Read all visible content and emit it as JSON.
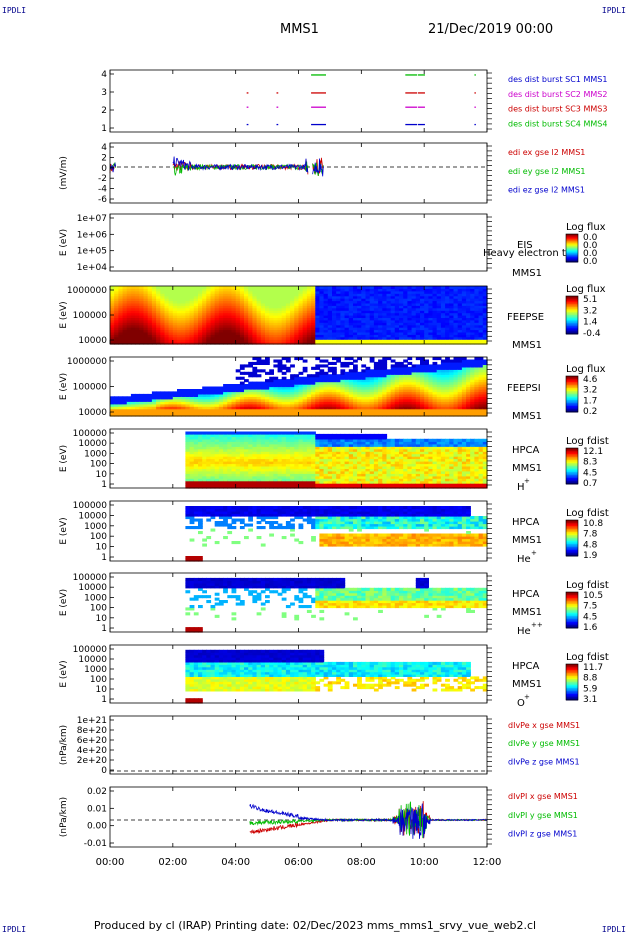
{
  "corner_tl": "IPDLI",
  "corner_tr": "IPDLI",
  "corner_bl": "IPDLI",
  "corner_br": "IPDLI",
  "title": "MMS1",
  "date": "21/Dec/2019 00:00",
  "footer": "Produced by cl (IRAP)   Printing date: 02/Dec/2023   mms_mms1_srvy_vue_web2.cl",
  "chart_data": {
    "type": "stacked-timeseries",
    "x_ticks": [
      "00:00",
      "02:00",
      "04:00",
      "06:00",
      "08:00",
      "10:00",
      "12:00"
    ],
    "panels": [
      {
        "id": "burst",
        "type": "scatter",
        "ylabel": "",
        "yticks": [
          "4",
          "3",
          "2",
          "1"
        ],
        "legend": [
          {
            "text": "des dist burst SC1 MMS1",
            "color": "#0000cc"
          },
          {
            "text": "des dist burst SC2 MMS2",
            "color": "#cc00cc"
          },
          {
            "text": "des dist burst SC3 MMS3",
            "color": "#cc0000"
          },
          {
            "text": "des dist burst SC4 MMS4",
            "color": "#00bb00"
          }
        ]
      },
      {
        "id": "efield",
        "type": "line",
        "ylabel": "(mV/m)",
        "yticks": [
          "4",
          "2",
          "0",
          "-2",
          "-4",
          "-6"
        ],
        "legend": [
          {
            "text": "edi ex gse l2 MMS1",
            "color": "#cc0000"
          },
          {
            "text": "edi ey gse l2 MMS1",
            "color": "#00bb00"
          },
          {
            "text": "edi ez gse l2 MMS1",
            "color": "#0000cc"
          }
        ]
      },
      {
        "id": "eis",
        "type": "heatmap",
        "ylabel": "E (eV)",
        "yticks": [
          "1e+07",
          "1e+06",
          "1e+05",
          "1e+04"
        ],
        "right_labels": [
          "EIS",
          "Heavy electron to",
          "MMS1"
        ],
        "cbar_title": "Log flux",
        "cbar_ticks": [
          "0.0",
          "0.0",
          "0.0",
          "0.0"
        ]
      },
      {
        "id": "feepse",
        "type": "heatmap",
        "ylabel": "E (eV)",
        "yticks": [
          "1000000",
          "100000",
          "10000"
        ],
        "right_labels": [
          "FEEPSE",
          "MMS1"
        ],
        "cbar_title": "Log flux",
        "cbar_ticks": [
          "5.1",
          "3.2",
          "1.4",
          "-0.4"
        ]
      },
      {
        "id": "feepsi",
        "type": "heatmap",
        "ylabel": "E (eV)",
        "yticks": [
          "1000000",
          "100000",
          "10000"
        ],
        "right_labels": [
          "FEEPSI",
          "MMS1"
        ],
        "cbar_title": "Log flux",
        "cbar_ticks": [
          "4.6",
          "3.2",
          "1.7",
          "0.2"
        ]
      },
      {
        "id": "hpca_h",
        "type": "heatmap",
        "ylabel": "E (eV)",
        "yticks": [
          "100000",
          "10000",
          "1000",
          "100",
          "10",
          "1"
        ],
        "right_labels": [
          "HPCA",
          "MMS1",
          "H",
          "+"
        ],
        "cbar_title": "Log fdist",
        "cbar_ticks": [
          "12.1",
          "8.3",
          "4.5",
          "0.7"
        ]
      },
      {
        "id": "hpca_he",
        "type": "heatmap",
        "ylabel": "E (eV)",
        "yticks": [
          "100000",
          "10000",
          "1000",
          "100",
          "10",
          "1"
        ],
        "right_labels": [
          "HPCA",
          "MMS1",
          "He",
          "+"
        ],
        "cbar_title": "Log fdist",
        "cbar_ticks": [
          "10.8",
          "7.8",
          "4.8",
          "1.9"
        ]
      },
      {
        "id": "hpca_hepp",
        "type": "heatmap",
        "ylabel": "E (eV)",
        "yticks": [
          "100000",
          "10000",
          "1000",
          "100",
          "10",
          "1"
        ],
        "right_labels": [
          "HPCA",
          "MMS1",
          "He",
          "++"
        ],
        "cbar_title": "Log fdist",
        "cbar_ticks": [
          "10.5",
          "7.5",
          "4.5",
          "1.6"
        ]
      },
      {
        "id": "hpca_o",
        "type": "heatmap",
        "ylabel": "E (eV)",
        "yticks": [
          "100000",
          "10000",
          "1000",
          "100",
          "10",
          "1"
        ],
        "right_labels": [
          "HPCA",
          "MMS1",
          "O",
          "+"
        ],
        "cbar_title": "Log fdist",
        "cbar_ticks": [
          "11.7",
          "8.8",
          "5.9",
          "3.1"
        ]
      },
      {
        "id": "divpe",
        "type": "line",
        "ylabel": "(nPa/km)",
        "yticks": [
          "1e+21",
          "8e+20",
          "6e+20",
          "4e+20",
          "2e+20",
          "0"
        ],
        "legend": [
          {
            "text": "dIvPe x gse MMS1",
            "color": "#cc0000"
          },
          {
            "text": "dIvPe y gse MMS1",
            "color": "#00bb00"
          },
          {
            "text": "dIvPe z gse MMS1",
            "color": "#0000cc"
          }
        ]
      },
      {
        "id": "divpi",
        "type": "line",
        "ylabel": "(nPa/km)",
        "yticks": [
          "0.02",
          "0.01",
          "0.00",
          "-0.01"
        ],
        "legend": [
          {
            "text": "dIvPI x gse MMS1",
            "color": "#cc0000"
          },
          {
            "text": "dIvPI y gse MMS1",
            "color": "#00bb00"
          },
          {
            "text": "dIvPI z gse MMS1",
            "color": "#0000cc"
          }
        ]
      }
    ]
  }
}
